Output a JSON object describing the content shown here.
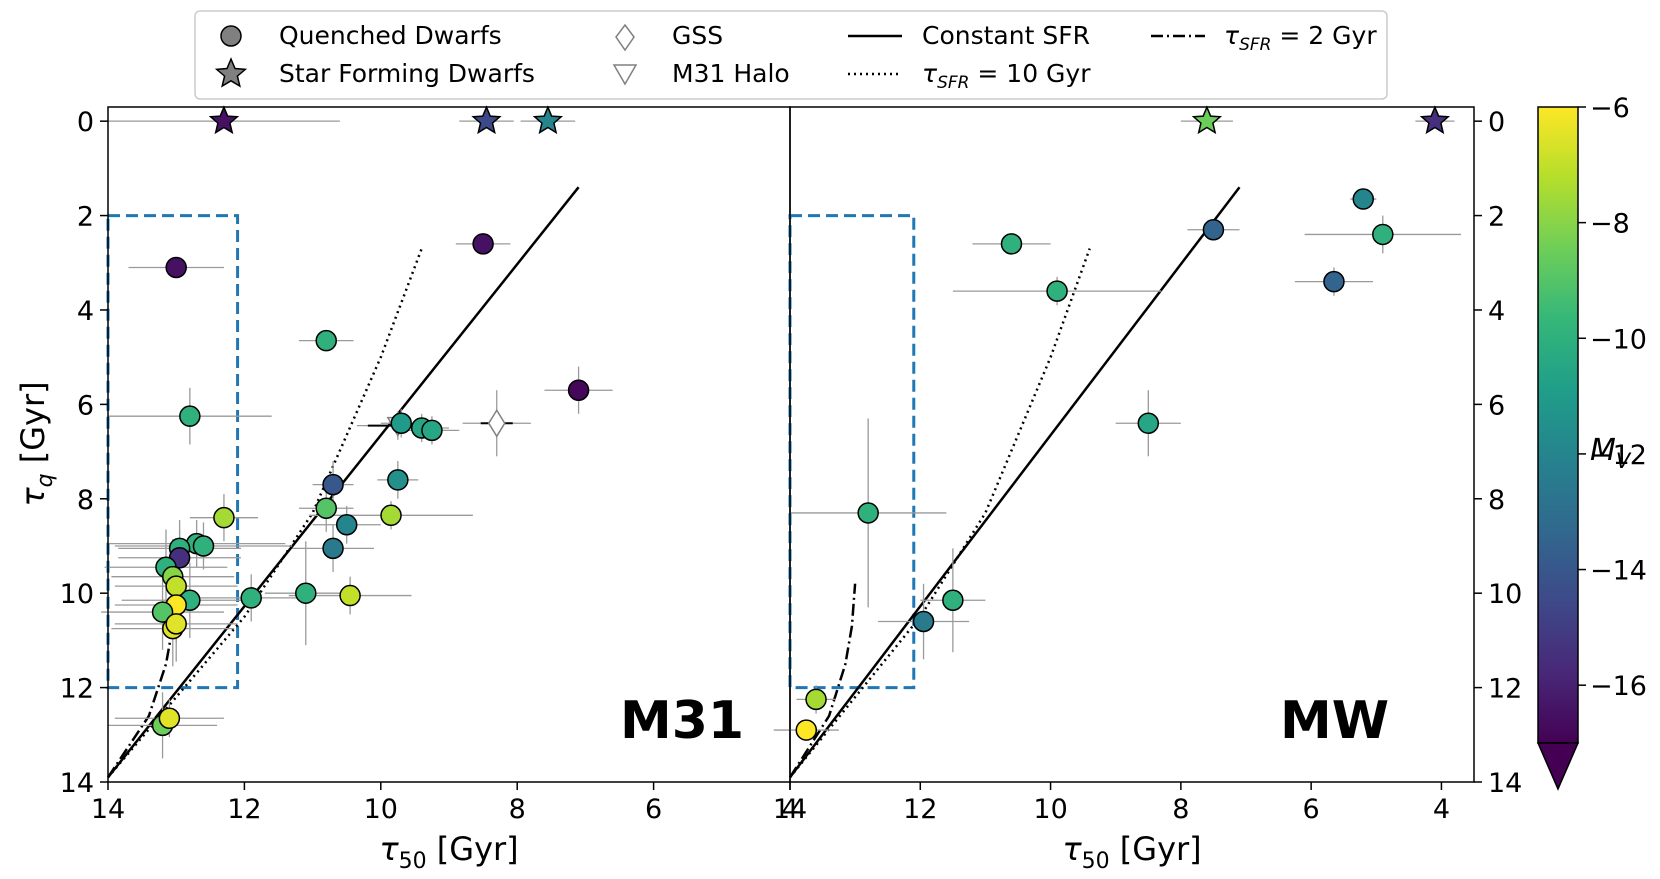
{
  "legend": {
    "quenched": "Quenched Dwarfs",
    "star_forming": "Star Forming Dwarfs",
    "gss": "GSS",
    "m31_halo": "M31 Halo",
    "constant_sfr": "Constant SFR",
    "tau_sfr_10_symbol": "τ",
    "tau_sfr_10_sub": "SFR",
    "tau_sfr_10_rest": " = 10 Gyr",
    "tau_sfr_2_symbol": "τ",
    "tau_sfr_2_sub": "SFR",
    "tau_sfr_2_rest": " = 2 Gyr"
  },
  "colorbar": {
    "label_symbol": "M",
    "label_sub": "V",
    "vmin": -17,
    "vmax": -6,
    "ticks": [
      -6,
      -8,
      -10,
      -12,
      -14,
      -16
    ],
    "tick_labels": [
      "−6",
      "−8",
      "−10",
      "−12",
      "−14",
      "−16"
    ],
    "colors": [
      "#440154",
      "#482878",
      "#3e4989",
      "#31688e",
      "#26828e",
      "#1f9e89",
      "#35b779",
      "#6ece58",
      "#b5de2b",
      "#fde725"
    ]
  },
  "chart_data": [
    {
      "type": "scatter",
      "panel": "M31",
      "panel_label": "M31",
      "xlabel_symbol": "τ",
      "xlabel_sub": "50",
      "xlabel_rest": " [Gyr]",
      "ylabel_symbol": "τ",
      "ylabel_sub": "q",
      "ylabel_rest": " [Gyr]",
      "xlim": [
        14,
        4
      ],
      "ylim": [
        14,
        -0.3
      ],
      "xticks": [
        14,
        12,
        10,
        8,
        6,
        4
      ],
      "xtick_labels": [
        "14",
        "12",
        "10",
        "8",
        "6",
        "4"
      ],
      "yticks": [
        0,
        2,
        4,
        6,
        8,
        10,
        12,
        14
      ],
      "ytick_labels": [
        "0",
        "2",
        "4",
        "6",
        "8",
        "10",
        "12",
        "14"
      ],
      "box": {
        "x": [
          14,
          12.1
        ],
        "y": [
          2,
          12
        ]
      },
      "lines": {
        "constant_sfr": [
          [
            14,
            13.9
          ],
          [
            7.1,
            1.4
          ]
        ],
        "tau_sfr_10": [
          [
            14,
            13.9
          ],
          [
            12,
            10.5
          ],
          [
            11,
            8.3
          ],
          [
            10,
            5.0
          ],
          [
            9.4,
            2.7
          ]
        ],
        "tau_sfr_2": [
          [
            14,
            13.9
          ],
          [
            13.4,
            12.6
          ],
          [
            13.15,
            11.5
          ],
          [
            13.05,
            10.7
          ],
          [
            13.0,
            9.8
          ]
        ]
      },
      "quenched": [
        {
          "x": 13.0,
          "y": 3.1,
          "mv": -16.5,
          "xerr": 0.7,
          "yerr": 0.2
        },
        {
          "x": 12.8,
          "y": 6.25,
          "mv": -10.0,
          "xerr": 1.2,
          "yerr": 0.6
        },
        {
          "x": 10.8,
          "y": 4.65,
          "mv": -10.0,
          "xerr": 0.4,
          "yerr": 0.2
        },
        {
          "x": 8.5,
          "y": 2.6,
          "mv": -16.5,
          "xerr": 0.4,
          "yerr": 0.1
        },
        {
          "x": 7.1,
          "y": 5.7,
          "mv": -16.8,
          "xerr": 0.5,
          "yerr": 0.5
        },
        {
          "x": 9.7,
          "y": 6.4,
          "mv": -11.0,
          "xerr": 0.3,
          "yerr": 0.3
        },
        {
          "x": 9.4,
          "y": 6.5,
          "mv": -10.5,
          "xerr": 0.4,
          "yerr": 0.3
        },
        {
          "x": 9.25,
          "y": 6.55,
          "mv": -10.5,
          "xerr": 0.4,
          "yerr": 0.3
        },
        {
          "x": 10.7,
          "y": 7.7,
          "mv": -14.0,
          "xerr": 0.3,
          "yerr": 0.5
        },
        {
          "x": 9.75,
          "y": 7.6,
          "mv": -11.5,
          "xerr": 0.3,
          "yerr": 0.4
        },
        {
          "x": 10.8,
          "y": 8.2,
          "mv": -9.0,
          "xerr": 0.4,
          "yerr": 0.5
        },
        {
          "x": 10.5,
          "y": 8.55,
          "mv": -12.0,
          "xerr": 0.5,
          "yerr": 0.4
        },
        {
          "x": 9.85,
          "y": 8.35,
          "mv": -7.5,
          "xerr": 1.2,
          "yerr": 0.3
        },
        {
          "x": 10.7,
          "y": 9.05,
          "mv": -12.5,
          "xerr": 0.6,
          "yerr": 0.5
        },
        {
          "x": 12.3,
          "y": 8.4,
          "mv": -7.5,
          "xerr": 0.5,
          "yerr": 0.5
        },
        {
          "x": 12.7,
          "y": 8.95,
          "mv": -10.0,
          "xerr": 1.3,
          "yerr": 0.5
        },
        {
          "x": 12.6,
          "y": 9.0,
          "mv": -10.0,
          "xerr": 1.3,
          "yerr": 0.5
        },
        {
          "x": 12.95,
          "y": 9.05,
          "mv": -10.0,
          "xerr": 0.9,
          "yerr": 0.6
        },
        {
          "x": 12.95,
          "y": 9.25,
          "mv": -15.5,
          "xerr": 0.9,
          "yerr": 0.6
        },
        {
          "x": 13.15,
          "y": 9.45,
          "mv": -10.0,
          "xerr": 0.9,
          "yerr": 0.8
        },
        {
          "x": 13.05,
          "y": 9.65,
          "mv": -8.0,
          "xerr": 0.9,
          "yerr": 0.8
        },
        {
          "x": 13.0,
          "y": 9.85,
          "mv": -7.0,
          "xerr": 0.9,
          "yerr": 0.8
        },
        {
          "x": 12.8,
          "y": 10.15,
          "mv": -10.0,
          "xerr": 1.0,
          "yerr": 0.8
        },
        {
          "x": 11.9,
          "y": 10.1,
          "mv": -10.0,
          "xerr": 0.8,
          "yerr": 0.5
        },
        {
          "x": 11.1,
          "y": 10.0,
          "mv": -10.0,
          "xerr": 0.6,
          "yerr": 1.1
        },
        {
          "x": 10.45,
          "y": 10.05,
          "mv": -7.0,
          "xerr": 0.9,
          "yerr": 0.4
        },
        {
          "x": 13.0,
          "y": 10.25,
          "mv": -6.0,
          "xerr": 0.9,
          "yerr": 0.8
        },
        {
          "x": 13.2,
          "y": 10.4,
          "mv": -9.0,
          "xerr": 0.9,
          "yerr": 0.8
        },
        {
          "x": 13.05,
          "y": 10.75,
          "mv": -6.5,
          "xerr": 0.9,
          "yerr": 0.8
        },
        {
          "x": 13.0,
          "y": 10.65,
          "mv": -6.5,
          "xerr": 0.9,
          "yerr": 0.8
        },
        {
          "x": 13.2,
          "y": 12.8,
          "mv": -8.5,
          "xerr": 0.8,
          "yerr": 0.7
        },
        {
          "x": 13.1,
          "y": 12.65,
          "mv": -6.5,
          "xerr": 0.8,
          "yerr": 0.4
        }
      ],
      "star_forming": [
        {
          "x": 12.3,
          "y": 0,
          "mv": -16.5,
          "xerr": 1.7
        },
        {
          "x": 8.45,
          "y": 0,
          "mv": -14.5,
          "xerr": 0.4
        },
        {
          "x": 7.55,
          "y": 0,
          "mv": -12.0,
          "xerr": 0.4
        }
      ],
      "gss": [
        {
          "x": 8.3,
          "y": 6.4,
          "xerr": 0.5,
          "yerr": 0.7
        }
      ],
      "m31_halo": [
        {
          "x": 9.75,
          "y": 6.45,
          "xerr": 0.6,
          "yerr": 0.3
        }
      ]
    },
    {
      "type": "scatter",
      "panel": "MW",
      "panel_label": "MW",
      "xlabel_symbol": "τ",
      "xlabel_sub": "50",
      "xlabel_rest": " [Gyr]",
      "xlim": [
        14,
        3.5
      ],
      "ylim": [
        14,
        -0.3
      ],
      "xticks": [
        14,
        12,
        10,
        8,
        6,
        4
      ],
      "xtick_labels": [
        "14",
        "12",
        "10",
        "8",
        "6",
        "4"
      ],
      "yticks": [
        0,
        2,
        4,
        6,
        8,
        10,
        12,
        14
      ],
      "ytick_labels": [
        "0",
        "2",
        "4",
        "6",
        "8",
        "10",
        "12",
        "14"
      ],
      "box": {
        "x": [
          14,
          12.1
        ],
        "y": [
          2,
          12
        ]
      },
      "lines": {
        "constant_sfr": [
          [
            14,
            13.9
          ],
          [
            7.1,
            1.4
          ]
        ],
        "tau_sfr_10": [
          [
            14,
            13.9
          ],
          [
            12,
            10.5
          ],
          [
            11,
            8.3
          ],
          [
            10,
            5.0
          ],
          [
            9.4,
            2.7
          ]
        ],
        "tau_sfr_2": [
          [
            14,
            13.9
          ],
          [
            13.4,
            12.6
          ],
          [
            13.15,
            11.5
          ],
          [
            13.05,
            10.7
          ],
          [
            13.0,
            9.8
          ]
        ]
      },
      "quenched": [
        {
          "x": 10.6,
          "y": 2.6,
          "mv": -10.0,
          "xerr": 0.6,
          "yerr": 0.2
        },
        {
          "x": 9.9,
          "y": 3.6,
          "mv": -10.0,
          "xerr": 1.6,
          "yerr": 0.3
        },
        {
          "x": 7.5,
          "y": 2.3,
          "mv": -13.5,
          "xerr": 0.4,
          "yerr": 0.2
        },
        {
          "x": 5.2,
          "y": 1.65,
          "mv": -12.0,
          "xerr": 0.2,
          "yerr": 0.1
        },
        {
          "x": 4.9,
          "y": 2.4,
          "mv": -10.0,
          "xerr": 1.2,
          "yerr": 0.4
        },
        {
          "x": 5.65,
          "y": 3.4,
          "mv": -13.5,
          "xerr": 0.6,
          "yerr": 0.3
        },
        {
          "x": 8.5,
          "y": 6.4,
          "mv": -10.5,
          "xerr": 0.5,
          "yerr": 0.7
        },
        {
          "x": 12.8,
          "y": 8.3,
          "mv": -10.0,
          "xerr": 1.2,
          "yerr": 2.0
        },
        {
          "x": 11.95,
          "y": 10.6,
          "mv": -12.5,
          "xerr": 0.7,
          "yerr": 0.8
        },
        {
          "x": 11.5,
          "y": 10.15,
          "mv": -10.0,
          "xerr": 0.5,
          "yerr": 1.1
        },
        {
          "x": 13.6,
          "y": 12.25,
          "mv": -7.5,
          "xerr": 0.3,
          "yerr": 0.3
        },
        {
          "x": 13.75,
          "y": 12.9,
          "mv": -6.0,
          "xerr": 0.5,
          "yerr": 0.2
        }
      ],
      "star_forming": [
        {
          "x": 7.6,
          "y": 0,
          "mv": -8.5,
          "xerr": 0.4
        },
        {
          "x": 4.1,
          "y": 0,
          "mv": -15.5,
          "xerr": 0.3
        }
      ]
    }
  ]
}
